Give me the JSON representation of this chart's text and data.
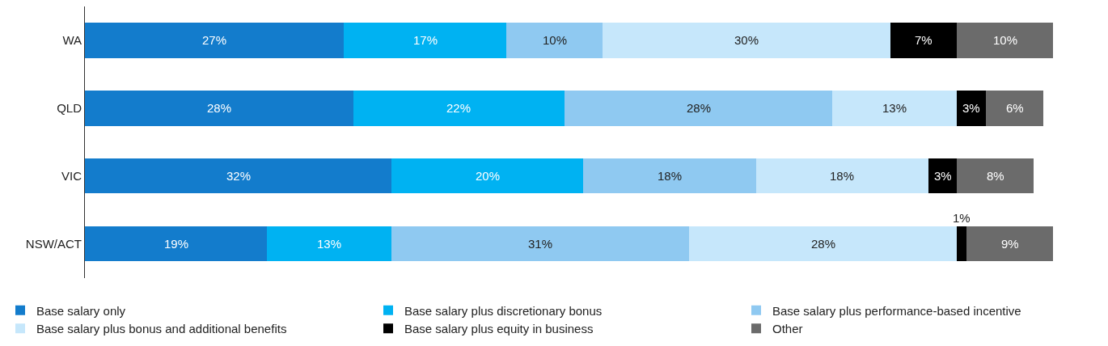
{
  "chart_data": {
    "type": "bar",
    "orientation": "horizontal",
    "stacked": true,
    "legend": "bottom",
    "categories": [
      "WA",
      "QLD",
      "VIC",
      "NSW/ACT"
    ],
    "series": [
      {
        "name": "Base salary only",
        "color": "#137ccc",
        "values": [
          27,
          28,
          32,
          19
        ],
        "value_labels": [
          "27%",
          "28%",
          "32%",
          "19%"
        ]
      },
      {
        "name": "Base salary plus discretionary bonus",
        "color": "#00b2f2",
        "values": [
          17,
          22,
          20,
          13
        ],
        "value_labels": [
          "17%",
          "22%",
          "20%",
          "13%"
        ]
      },
      {
        "name": "Base salary plus performance-based incentive",
        "color": "#8fc9f1",
        "values": [
          10,
          28,
          18,
          31
        ],
        "value_labels": [
          "10%",
          "28%",
          "18%",
          "31%"
        ]
      },
      {
        "name": "Base salary plus bonus and additional benefits",
        "color": "#c6e7fb",
        "values": [
          30,
          13,
          18,
          28
        ],
        "value_labels": [
          "30%",
          "13%",
          "18%",
          "28%"
        ]
      },
      {
        "name": "Base salary plus equity in business",
        "color": "#000000",
        "values": [
          7,
          3,
          3,
          1
        ],
        "value_labels": [
          "7%",
          "3%",
          "3%",
          "1%"
        ]
      },
      {
        "name": "Other",
        "color": "#6b6b6b",
        "values": [
          10,
          6,
          8,
          9
        ],
        "value_labels": [
          "10%",
          "6%",
          "8%",
          "9%"
        ]
      }
    ]
  }
}
